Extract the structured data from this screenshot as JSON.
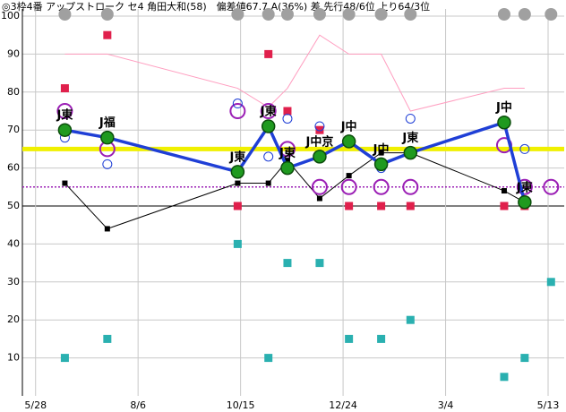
{
  "chart_data": {
    "type": "scatter",
    "title": "◎3枠4番 アップストローク セ4 角田大和(58)　偏差値67.7 A(36%) 差 先行48/6位 上り64/3位",
    "x": [
      20,
      49,
      138,
      159,
      172,
      194,
      214,
      236,
      256,
      320,
      334,
      352
    ],
    "xlim": [
      -9,
      361
    ],
    "xticks": [
      {
        "value": 0,
        "label": "5/28"
      },
      {
        "value": 70,
        "label": "8/6"
      },
      {
        "value": 140,
        "label": "10/15"
      },
      {
        "value": 210,
        "label": "12/24"
      },
      {
        "value": 280,
        "label": "3/4"
      },
      {
        "value": 350,
        "label": "5/13"
      }
    ],
    "ylim": [
      0,
      100
    ],
    "yticks": [
      10,
      20,
      30,
      40,
      50,
      60,
      70,
      80,
      90,
      100
    ],
    "grid": true,
    "hlines": [
      {
        "value": 65,
        "color": "#f0f000",
        "style": "solid"
      },
      {
        "value": 55,
        "color": "#9b1fb5",
        "style": "dotted"
      }
    ],
    "series": [
      {
        "style": "line",
        "color": "#ff9ec0",
        "values": [
          90,
          90,
          81,
          76,
          81,
          95,
          90,
          90,
          75,
          81,
          81,
          null
        ]
      },
      {
        "style": "line-square",
        "color": "#000000",
        "values": [
          56,
          44,
          56,
          56,
          62,
          52,
          58,
          64,
          64,
          54,
          51,
          null
        ]
      },
      {
        "style": "square",
        "color": "#e0204c",
        "values": [
          81,
          95,
          50,
          90,
          75,
          70,
          50,
          50,
          50,
          50,
          50,
          null
        ]
      },
      {
        "style": "square",
        "color": "#2ab0b0",
        "values": [
          10,
          15,
          40,
          10,
          35,
          35,
          15,
          15,
          20,
          5,
          10,
          30
        ]
      },
      {
        "style": "ring",
        "color": "#9b1fb5",
        "values": [
          75,
          65,
          75,
          75,
          65,
          55,
          55,
          55,
          55,
          66,
          55,
          55
        ]
      },
      {
        "style": "small-ring",
        "color": "#1f3fd6",
        "values": [
          68,
          61,
          77,
          63,
          73,
          71,
          null,
          60,
          73,
          null,
          65,
          null
        ]
      },
      {
        "style": "main-line",
        "color": "#1f3fd6",
        "values": [
          70,
          68,
          59,
          71,
          60,
          63,
          67,
          61,
          64,
          72,
          51,
          null
        ]
      }
    ],
    "point_labels": [
      "J東",
      "J福",
      "J東",
      "J東",
      "J東",
      "J中京",
      "J中",
      "J中",
      "J東",
      "J中",
      "J東",
      null
    ]
  }
}
